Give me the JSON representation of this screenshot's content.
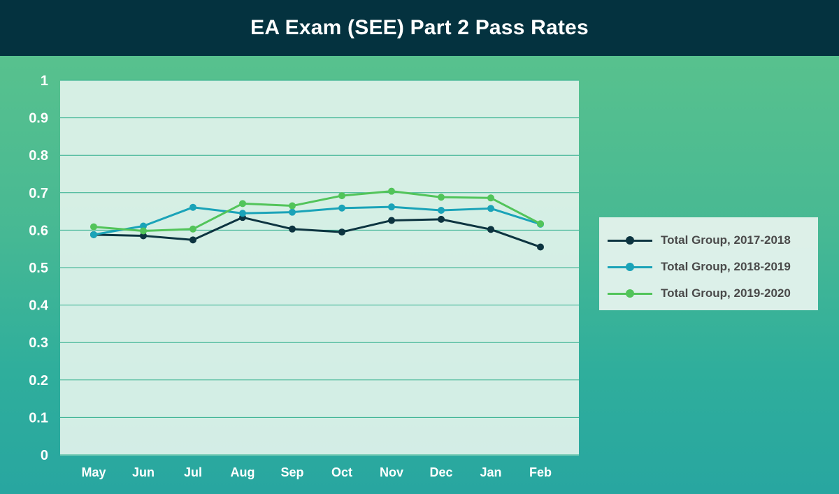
{
  "header": {
    "title": "EA Exam (SEE) Part 2 Pass Rates"
  },
  "colors": {
    "header_bg": "#04323f",
    "plot_bg": "#e2f3ec",
    "grid": "#2fae8c",
    "series": [
      "#0d3440",
      "#1aa3b8",
      "#52c45a"
    ]
  },
  "chart_data": {
    "type": "line",
    "title": "EA Exam (SEE) Part 2 Pass Rates",
    "xlabel": "",
    "ylabel": "",
    "ylim": [
      0,
      1
    ],
    "yticks": [
      "0",
      "0.1",
      "0.2",
      "0.3",
      "0.4",
      "0.5",
      "0.6",
      "0.7",
      "0.8",
      "0.9",
      "1"
    ],
    "grid": true,
    "legend_position": "right",
    "categories": [
      "May",
      "Jun",
      "Jul",
      "Aug",
      "Sep",
      "Oct",
      "Nov",
      "Dec",
      "Jan",
      "Feb"
    ],
    "series": [
      {
        "name": "Total Group, 2017-2018",
        "color": "#0d3440",
        "values": [
          0.588,
          0.585,
          0.574,
          0.634,
          0.603,
          0.595,
          0.626,
          0.629,
          0.602,
          0.555
        ]
      },
      {
        "name": "Total Group, 2018-2019",
        "color": "#1aa3b8",
        "values": [
          0.588,
          0.611,
          0.661,
          0.645,
          0.648,
          0.659,
          0.662,
          0.653,
          0.658,
          0.616
        ]
      },
      {
        "name": "Total Group, 2019-2020",
        "color": "#52c45a",
        "values": [
          0.609,
          0.598,
          0.603,
          0.671,
          0.665,
          0.692,
          0.704,
          0.688,
          0.686,
          0.617
        ]
      }
    ]
  }
}
